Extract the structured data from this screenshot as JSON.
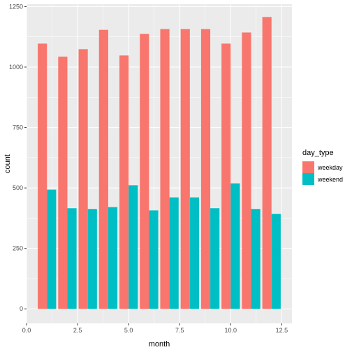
{
  "chart_data": {
    "type": "bar",
    "xlabel": "month",
    "ylabel": "count",
    "xlim": [
      0,
      13
    ],
    "ylim": [
      -60,
      1260
    ],
    "x_ticks": [
      0.0,
      2.5,
      5.0,
      7.5,
      10.0,
      12.5
    ],
    "x_tick_labels": [
      "0.0",
      "2.5",
      "5.0",
      "7.5",
      "10.0",
      "12.5"
    ],
    "y_ticks": [
      0,
      250,
      500,
      750,
      1000,
      1250
    ],
    "y_tick_labels": [
      "0",
      "250",
      "500",
      "750",
      "1000",
      "1250"
    ],
    "x": [
      1,
      2,
      3,
      4,
      5,
      6,
      7,
      8,
      9,
      10,
      11,
      12
    ],
    "series": [
      {
        "name": "weekday",
        "color": "#F8766D",
        "values": [
          1097,
          1043,
          1074,
          1154,
          1048,
          1137,
          1157,
          1157,
          1157,
          1097,
          1143,
          1207
        ]
      },
      {
        "name": "weekend",
        "color": "#00BFC4",
        "values": [
          493,
          416,
          413,
          421,
          511,
          407,
          461,
          461,
          416,
          519,
          413,
          393
        ]
      }
    ],
    "legend": {
      "title": "day_type",
      "placement": "right"
    },
    "grid": true,
    "panel_background": "#EBEBEB",
    "grid_color": "#FFFFFF"
  }
}
